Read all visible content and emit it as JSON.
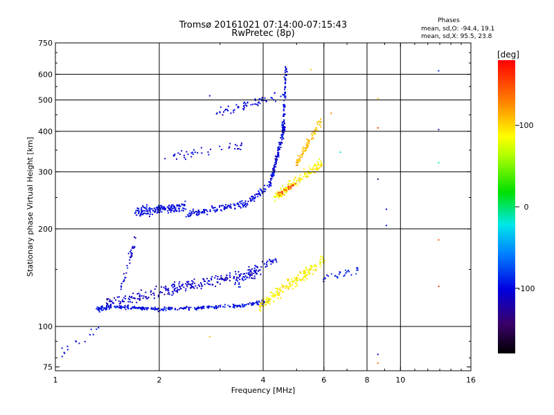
{
  "chart_data": {
    "type": "scatter",
    "title": "Tromsø 20161021 07:14:00-07:15:43",
    "subtitle": "RwPretec (8p)",
    "phase_header": "Phases",
    "phase_stats": [
      "mean, sd,O: -94.4, 19.1",
      "mean, sd,X:  95.5, 23.8"
    ],
    "xlabel": "Frequency [MHz]",
    "ylabel": "Stationary phase Virtual Height [km]",
    "x_scale": "log",
    "y_scale": "log",
    "xlim": [
      1,
      16
    ],
    "ylim": [
      73,
      750
    ],
    "x_ticks": [
      1,
      2,
      4,
      6,
      8,
      10,
      16
    ],
    "x_gridlines": [
      2,
      4,
      6,
      8,
      10
    ],
    "y_ticks": [
      75,
      100,
      200,
      300,
      400,
      500,
      600,
      750
    ],
    "y_gridlines": [
      100,
      200,
      300,
      400,
      500,
      600
    ],
    "grid": true,
    "colorbar": {
      "label": "[deg]",
      "min": -180,
      "max": 180,
      "ticks": [
        100,
        0,
        -100
      ]
    },
    "series": [
      {
        "segments": [
          {
            "f": [
              1.32,
              1.45
            ],
            "h": [
              113,
              115
            ],
            "phase": -95,
            "n": 40,
            "spread": 0.03
          },
          {
            "f": [
              1.45,
              2.0
            ],
            "h": [
              115,
              113
            ],
            "phase": -100,
            "n": 90,
            "spread": 0.02
          },
          {
            "f": [
              2.0,
              3.5
            ],
            "h": [
              113,
              116
            ],
            "phase": -100,
            "n": 110,
            "spread": 0.02
          },
          {
            "f": [
              3.5,
              4.2
            ],
            "h": [
              116,
              120
            ],
            "phase": -95,
            "n": 40,
            "spread": 0.02
          },
          {
            "f": [
              1.4,
              3.9
            ],
            "h": [
              118,
              148
            ],
            "phase": -110,
            "n": 260,
            "spread": 0.06
          },
          {
            "f": [
              1.55,
              1.7
            ],
            "h": [
              130,
              185
            ],
            "phase": -105,
            "n": 35,
            "spread": 0.06
          },
          {
            "f": [
              3.3,
              4.4
            ],
            "h": [
              135,
              162
            ],
            "phase": -100,
            "n": 50,
            "spread": 0.05
          },
          {
            "f": [
              1.7,
              2.4
            ],
            "h": [
              225,
              235
            ],
            "phase": -100,
            "n": 160,
            "spread": 0.05
          },
          {
            "f": [
              2.4,
              3.6
            ],
            "h": [
              222,
              240
            ],
            "phase": -100,
            "n": 120,
            "spread": 0.04
          },
          {
            "f": [
              3.6,
              4.2
            ],
            "h": [
              240,
              275
            ],
            "phase": -100,
            "n": 50,
            "spread": 0.04
          },
          {
            "f": [
              4.2,
              4.62
            ],
            "h": [
              275,
              420
            ],
            "phase": -105,
            "n": 120,
            "spread": 0.04
          },
          {
            "f": [
              4.55,
              4.67
            ],
            "h": [
              380,
              640
            ],
            "phase": -100,
            "n": 80,
            "spread": 0.04
          },
          {
            "f": [
              2.9,
              4.6
            ],
            "h": [
              450,
              520
            ],
            "phase": -100,
            "n": 60,
            "spread": 0.05
          },
          {
            "f": [
              1.95,
              3.5
            ],
            "h": [
              325,
              365
            ],
            "phase": -105,
            "n": 40,
            "spread": 0.06
          },
          {
            "f": [
              1.0,
              1.35
            ],
            "h": [
              80,
              100
            ],
            "phase": -100,
            "n": 15,
            "spread": 0.06
          }
        ]
      },
      {
        "segments": [
          {
            "f": [
              4.3,
              5.95
            ],
            "h": [
              250,
              320
            ],
            "phase": 90,
            "n": 150,
            "spread": 0.05
          },
          {
            "f": [
              5.0,
              5.9
            ],
            "h": [
              320,
              430
            ],
            "phase": 110,
            "n": 80,
            "spread": 0.05
          },
          {
            "f": [
              3.9,
              6.0
            ],
            "h": [
              115,
              160
            ],
            "phase": 90,
            "n": 180,
            "spread": 0.07
          },
          {
            "f": [
              5.95,
              7.7
            ],
            "h": [
              140,
              150
            ],
            "phase": -90,
            "n": 30,
            "spread": 0.04
          },
          {
            "f": [
              4.4,
              5.0
            ],
            "h": [
              255,
              275
            ],
            "phase": 150,
            "n": 25,
            "spread": 0.03
          }
        ]
      }
    ],
    "isolated_points": [
      {
        "f": 8.6,
        "h": 505,
        "phase": 110
      },
      {
        "f": 8.6,
        "h": 410,
        "phase": 160
      },
      {
        "f": 8.6,
        "h": 285,
        "phase": -150
      },
      {
        "f": 9.1,
        "h": 230,
        "phase": -100
      },
      {
        "f": 9.1,
        "h": 205,
        "phase": -95
      },
      {
        "f": 8.6,
        "h": 82,
        "phase": -110
      },
      {
        "f": 8.6,
        "h": 77,
        "phase": 140
      },
      {
        "f": 12.9,
        "h": 615,
        "phase": -90
      },
      {
        "f": 12.9,
        "h": 405,
        "phase": -120
      },
      {
        "f": 12.9,
        "h": 320,
        "phase": -10
      },
      {
        "f": 12.9,
        "h": 185,
        "phase": 150
      },
      {
        "f": 12.9,
        "h": 133,
        "phase": 160
      },
      {
        "f": 2.8,
        "h": 515,
        "phase": -100
      },
      {
        "f": 6.7,
        "h": 345,
        "phase": -20
      },
      {
        "f": 5.5,
        "h": 620,
        "phase": 110
      },
      {
        "f": 6.3,
        "h": 455,
        "phase": 130
      },
      {
        "f": 2.8,
        "h": 93,
        "phase": 110
      }
    ]
  }
}
